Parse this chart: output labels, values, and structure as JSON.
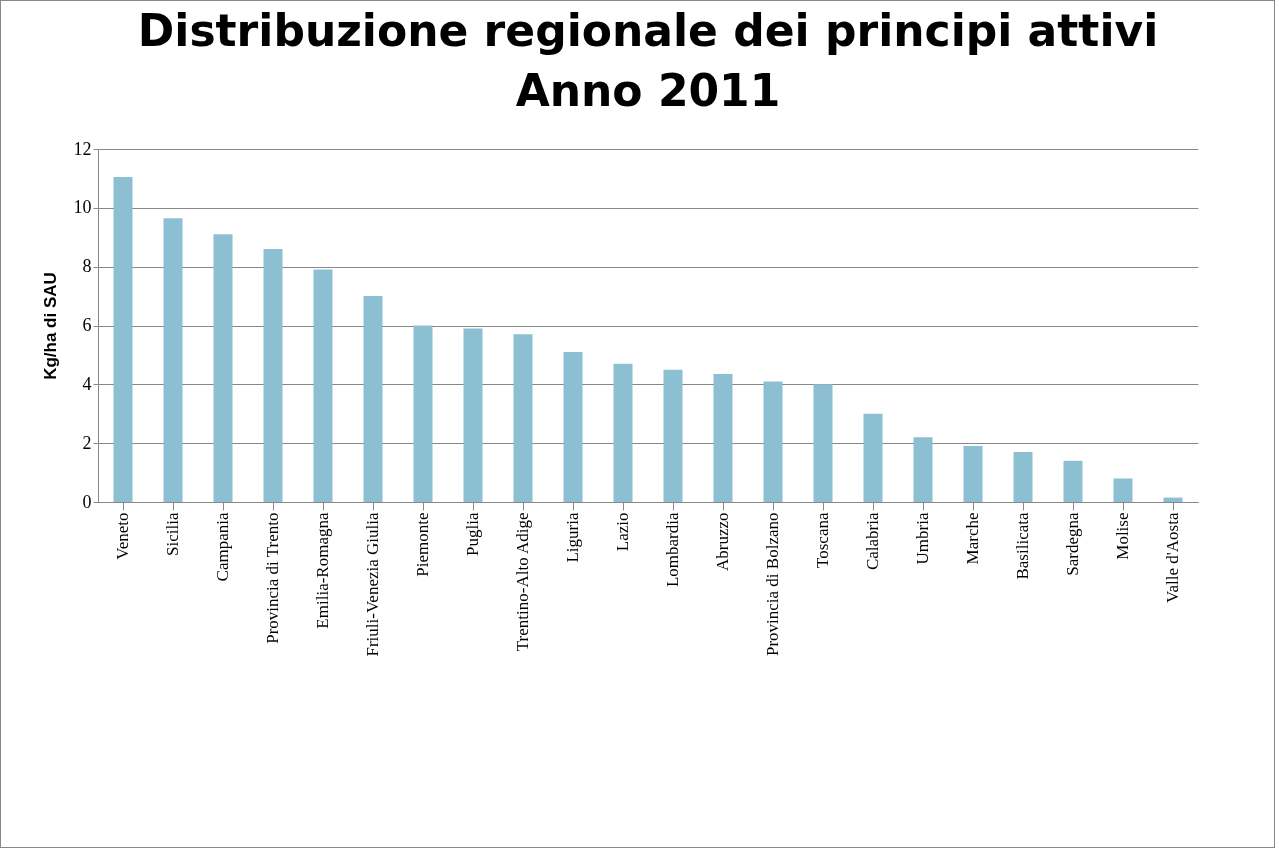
{
  "chart_data": {
    "type": "bar",
    "title": [
      "Distribuzione regionale dei principi attivi",
      "Anno 2011"
    ],
    "ylabel": "Kg/ha di SAU",
    "categories": [
      "Veneto",
      "Sicilia",
      "Campania",
      "Provincia di Trento",
      "Emilia-Romagna",
      "Friuli-Venezia Giulia",
      "Piemonte",
      "Puglia",
      "Trentino-Alto Adige",
      "Liguria",
      "Lazio",
      "Lombardia",
      "Abruzzo",
      "Provincia di Bolzano",
      "Toscana",
      "Calabria",
      "Umbria",
      "Marche",
      "Basilicata",
      "Sardegna",
      "Molise",
      "Valle d'Aosta"
    ],
    "values": [
      11.05,
      9.65,
      9.1,
      8.6,
      7.9,
      7.0,
      6.0,
      5.9,
      5.7,
      5.1,
      4.7,
      4.5,
      4.35,
      4.1,
      4.0,
      3.0,
      2.2,
      1.9,
      1.7,
      1.4,
      0.8,
      0.15
    ],
    "color": "#8cbfd2",
    "ylim": [
      0,
      12
    ],
    "yticks": [
      0,
      2,
      4,
      6,
      8,
      10,
      12
    ],
    "grid": "y"
  }
}
